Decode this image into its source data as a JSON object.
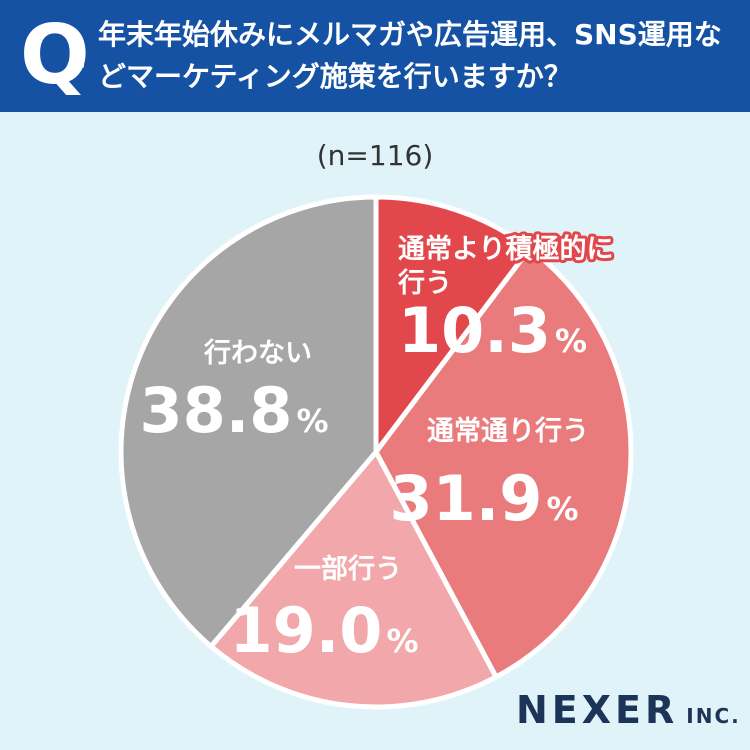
{
  "header": {
    "q_mark": "Q",
    "question": "年末年始休みにメルマガや広告運用、SNS運用などマーケティング施策を行いますか？"
  },
  "sample_size": "(n=116)",
  "brand": {
    "name": "NEXER",
    "suffix": "INC."
  },
  "chart_data": {
    "type": "pie",
    "title": "",
    "unit": "%",
    "start_angle_deg": 0,
    "direction": "clockwise",
    "slices": [
      {
        "label": "通常より積極的に行う",
        "label_lines": [
          "通常より積極的に",
          "行う"
        ],
        "value": 10.3,
        "color": "#e2474c",
        "label_color": "#ffffff",
        "label_outline": "#e2474c"
      },
      {
        "label": "通常通り行う",
        "label_lines": [
          "通常通り行う"
        ],
        "value": 31.9,
        "color": "#e97b7d",
        "label_color": "#ffffff"
      },
      {
        "label": "一部行う",
        "label_lines": [
          "一部行う"
        ],
        "value": 19.0,
        "color": "#f2a8aa",
        "label_color": "#ffffff"
      },
      {
        "label": "行わない",
        "label_lines": [
          "行わない"
        ],
        "value": 38.8,
        "color": "#a6a6a6",
        "label_color": "#ffffff"
      }
    ]
  }
}
